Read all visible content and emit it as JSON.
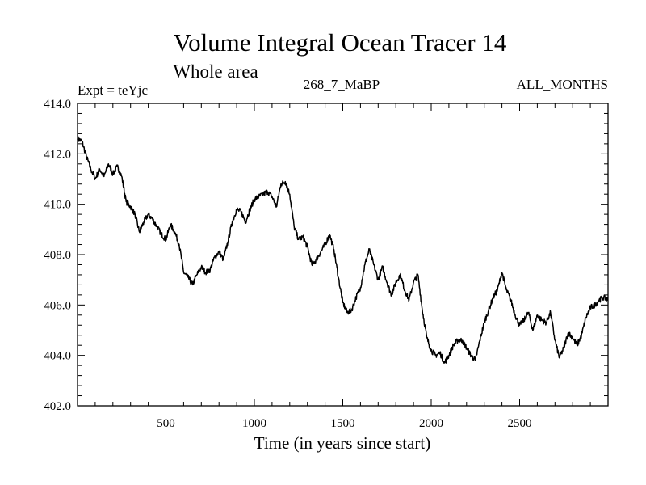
{
  "chart_data": {
    "type": "line",
    "title": "Volume Integral Ocean Tracer 14",
    "subtitle": "Whole area",
    "left_label": "Expt = teYjc",
    "center_label": "268_7_MaBP",
    "right_label": "ALL_MONTHS",
    "xlabel": "Time (in years since start)",
    "ylabel": "",
    "xlim": [
      0,
      3000
    ],
    "ylim": [
      402.0,
      414.0
    ],
    "x_ticks": [
      500,
      1000,
      1500,
      2000,
      2500
    ],
    "x_tick_labels": [
      "500",
      "1000",
      "1500",
      "2000",
      "2500"
    ],
    "y_ticks": [
      402,
      404,
      406,
      408,
      410,
      412,
      414
    ],
    "y_tick_labels": [
      "402.0",
      "404.0",
      "406.0",
      "408.0",
      "410.0",
      "412.0",
      "414.0"
    ],
    "grid": false,
    "series": [
      {
        "name": "Volume Integral Ocean Tracer 14",
        "color": "#000000",
        "x": [
          0,
          25,
          50,
          75,
          100,
          125,
          150,
          175,
          200,
          225,
          250,
          275,
          300,
          325,
          350,
          375,
          400,
          425,
          450,
          475,
          500,
          525,
          550,
          575,
          600,
          625,
          650,
          675,
          700,
          725,
          750,
          775,
          800,
          825,
          850,
          875,
          900,
          925,
          950,
          975,
          1000,
          1025,
          1050,
          1075,
          1100,
          1125,
          1150,
          1175,
          1200,
          1225,
          1250,
          1275,
          1300,
          1325,
          1350,
          1375,
          1400,
          1425,
          1450,
          1475,
          1500,
          1525,
          1550,
          1575,
          1600,
          1625,
          1650,
          1675,
          1700,
          1725,
          1750,
          1775,
          1800,
          1825,
          1850,
          1875,
          1900,
          1925,
          1950,
          1975,
          2000,
          2025,
          2050,
          2075,
          2100,
          2125,
          2150,
          2175,
          2200,
          2225,
          2250,
          2275,
          2300,
          2325,
          2350,
          2375,
          2400,
          2425,
          2450,
          2475,
          2500,
          2525,
          2550,
          2575,
          2600,
          2625,
          2650,
          2675,
          2700,
          2725,
          2750,
          2775,
          2800,
          2825,
          2850,
          2875,
          2900,
          2925,
          2950,
          2975,
          3000
        ],
        "values": [
          412.6,
          412.5,
          411.9,
          411.4,
          411.0,
          411.4,
          411.1,
          411.6,
          411.2,
          411.5,
          411.1,
          410.1,
          409.9,
          409.6,
          408.9,
          409.3,
          409.6,
          409.4,
          409.1,
          408.8,
          408.6,
          409.2,
          408.9,
          408.4,
          407.3,
          407.1,
          406.8,
          407.2,
          407.5,
          407.3,
          407.4,
          407.9,
          408.1,
          407.8,
          408.5,
          409.3,
          409.8,
          409.7,
          409.3,
          409.8,
          410.2,
          410.3,
          410.4,
          410.5,
          410.3,
          409.9,
          410.8,
          410.9,
          410.4,
          409.1,
          408.6,
          408.7,
          408.3,
          407.6,
          407.8,
          408.1,
          408.4,
          408.8,
          408.2,
          407.1,
          406.1,
          405.7,
          405.8,
          406.3,
          406.7,
          407.6,
          408.2,
          407.6,
          407.0,
          407.5,
          406.9,
          406.4,
          406.9,
          407.2,
          406.6,
          406.2,
          406.9,
          407.2,
          405.8,
          404.7,
          404.2,
          404.0,
          404.1,
          403.7,
          404.0,
          404.4,
          404.6,
          404.6,
          404.3,
          404.0,
          403.8,
          404.6,
          405.3,
          405.8,
          406.3,
          406.6,
          407.3,
          406.6,
          406.2,
          405.6,
          405.2,
          405.4,
          405.7,
          405.0,
          405.6,
          405.4,
          405.3,
          405.7,
          404.6,
          403.9,
          404.3,
          404.9,
          404.7,
          404.4,
          404.8,
          405.5,
          405.9,
          406.0,
          406.2,
          406.3,
          406.2
        ]
      }
    ]
  }
}
